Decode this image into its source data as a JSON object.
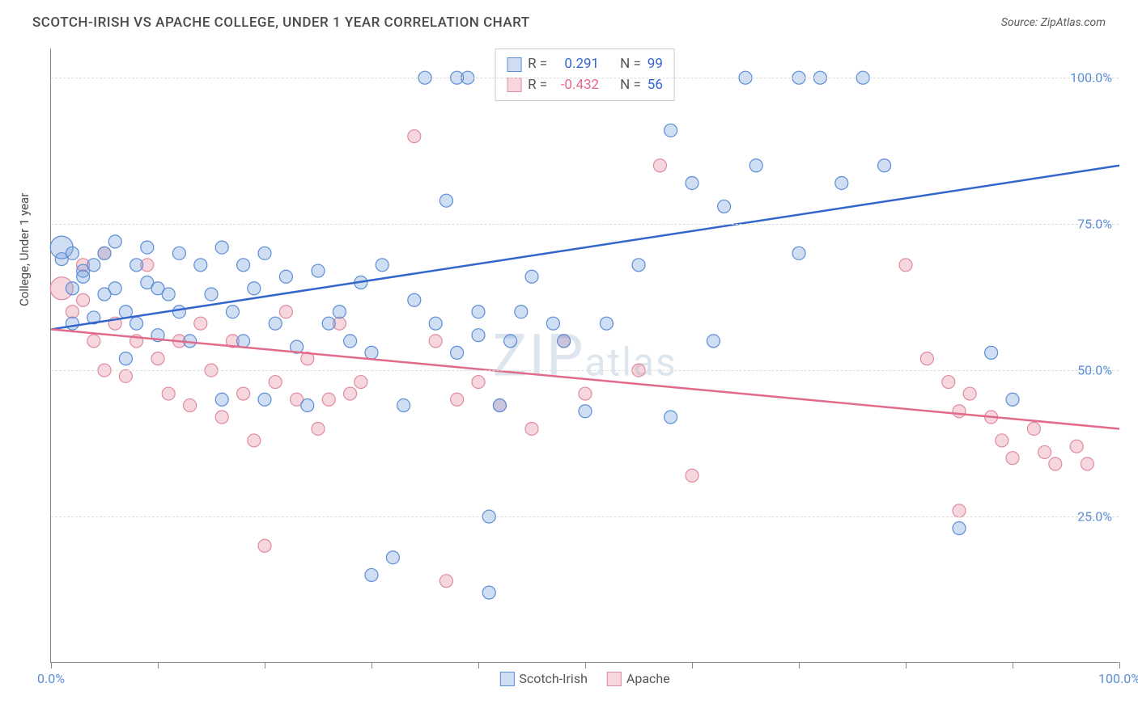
{
  "title": "SCOTCH-IRISH VS APACHE COLLEGE, UNDER 1 YEAR CORRELATION CHART",
  "source": "Source: ZipAtlas.com",
  "watermark": {
    "big": "ZIP",
    "small": "atlas"
  },
  "y_axis_label": "College, Under 1 year",
  "chart": {
    "type": "scatter",
    "xlim": [
      0,
      100
    ],
    "ylim": [
      0,
      105
    ],
    "x_ticks": [
      0,
      10,
      20,
      30,
      40,
      50,
      60,
      70,
      80,
      90,
      100
    ],
    "x_tick_labels": {
      "0": "0.0%",
      "100": "100.0%"
    },
    "y_ticks": [
      25,
      50,
      75,
      100
    ],
    "y_tick_labels": {
      "25": "25.0%",
      "50": "50.0%",
      "75": "75.0%",
      "100": "100.0%"
    },
    "grid_color": "#dddddd",
    "axis_color": "#888888",
    "background": "#ffffff"
  },
  "series": {
    "scotch_irish": {
      "label": "Scotch-Irish",
      "fill": "rgba(120,160,220,0.35)",
      "stroke": "#5b8dd6",
      "line_color": "#3366cc",
      "marker_r": 8,
      "R_label": "R =",
      "R_val": "0.291",
      "N_label": "N =",
      "N_val": "99",
      "trend": {
        "x1": 0,
        "y1": 57,
        "x2": 100,
        "y2": 85
      },
      "points": [
        [
          1,
          69
        ],
        [
          1,
          71,
          14
        ],
        [
          2,
          64
        ],
        [
          2,
          58
        ],
        [
          2,
          70
        ],
        [
          3,
          67
        ],
        [
          3,
          66
        ],
        [
          4,
          68
        ],
        [
          4,
          59
        ],
        [
          5,
          70
        ],
        [
          5,
          63
        ],
        [
          6,
          64
        ],
        [
          6,
          72
        ],
        [
          7,
          60
        ],
        [
          7,
          52
        ],
        [
          8,
          68
        ],
        [
          8,
          58
        ],
        [
          9,
          65
        ],
        [
          9,
          71
        ],
        [
          10,
          56
        ],
        [
          10,
          64
        ],
        [
          11,
          63
        ],
        [
          12,
          70
        ],
        [
          12,
          60
        ],
        [
          13,
          55
        ],
        [
          14,
          68
        ],
        [
          15,
          63
        ],
        [
          16,
          71
        ],
        [
          16,
          45
        ],
        [
          17,
          60
        ],
        [
          18,
          68
        ],
        [
          18,
          55
        ],
        [
          19,
          64
        ],
        [
          20,
          45
        ],
        [
          20,
          70
        ],
        [
          21,
          58
        ],
        [
          22,
          66
        ],
        [
          23,
          54
        ],
        [
          24,
          44
        ],
        [
          25,
          67
        ],
        [
          26,
          58
        ],
        [
          27,
          60
        ],
        [
          28,
          55
        ],
        [
          29,
          65
        ],
        [
          30,
          53
        ],
        [
          30,
          15
        ],
        [
          31,
          68
        ],
        [
          32,
          18
        ],
        [
          33,
          44
        ],
        [
          34,
          62
        ],
        [
          35,
          100
        ],
        [
          36,
          58
        ],
        [
          37,
          79
        ],
        [
          38,
          100
        ],
        [
          38,
          53
        ],
        [
          39,
          100
        ],
        [
          40,
          60
        ],
        [
          40,
          56
        ],
        [
          41,
          25
        ],
        [
          41,
          12
        ],
        [
          42,
          44
        ],
        [
          43,
          55
        ],
        [
          44,
          60
        ],
        [
          45,
          66
        ],
        [
          47,
          58
        ],
        [
          48,
          55
        ],
        [
          50,
          43
        ],
        [
          52,
          58
        ],
        [
          55,
          68
        ],
        [
          58,
          91
        ],
        [
          58,
          42
        ],
        [
          60,
          82
        ],
        [
          62,
          55
        ],
        [
          63,
          78
        ],
        [
          65,
          100
        ],
        [
          66,
          85
        ],
        [
          70,
          100
        ],
        [
          70,
          70
        ],
        [
          72,
          100
        ],
        [
          74,
          82
        ],
        [
          76,
          100
        ],
        [
          78,
          85
        ],
        [
          85,
          23
        ],
        [
          88,
          53
        ],
        [
          90,
          45
        ]
      ]
    },
    "apache": {
      "label": "Apache",
      "fill": "rgba(230,140,160,0.35)",
      "stroke": "#e08aa0",
      "line_color": "#e26a8a",
      "marker_r": 8,
      "R_label": "R =",
      "R_val": "-0.432",
      "N_label": "N =",
      "N_val": "56",
      "trend": {
        "x1": 0,
        "y1": 57,
        "x2": 100,
        "y2": 40
      },
      "points": [
        [
          1,
          64,
          14
        ],
        [
          2,
          60
        ],
        [
          3,
          62
        ],
        [
          3,
          68
        ],
        [
          4,
          55
        ],
        [
          5,
          70
        ],
        [
          5,
          50
        ],
        [
          6,
          58
        ],
        [
          7,
          49
        ],
        [
          8,
          55
        ],
        [
          9,
          68
        ],
        [
          10,
          52
        ],
        [
          11,
          46
        ],
        [
          12,
          55
        ],
        [
          13,
          44
        ],
        [
          14,
          58
        ],
        [
          15,
          50
        ],
        [
          16,
          42
        ],
        [
          17,
          55
        ],
        [
          18,
          46
        ],
        [
          19,
          38
        ],
        [
          20,
          20
        ],
        [
          21,
          48
        ],
        [
          22,
          60
        ],
        [
          23,
          45
        ],
        [
          24,
          52
        ],
        [
          25,
          40
        ],
        [
          26,
          45
        ],
        [
          27,
          58
        ],
        [
          28,
          46
        ],
        [
          29,
          48
        ],
        [
          34,
          90
        ],
        [
          36,
          55
        ],
        [
          37,
          14
        ],
        [
          38,
          45
        ],
        [
          40,
          48
        ],
        [
          42,
          44
        ],
        [
          45,
          40
        ],
        [
          48,
          55
        ],
        [
          50,
          46
        ],
        [
          55,
          50
        ],
        [
          57,
          85
        ],
        [
          60,
          32
        ],
        [
          80,
          68
        ],
        [
          82,
          52
        ],
        [
          84,
          48
        ],
        [
          85,
          43
        ],
        [
          86,
          46
        ],
        [
          88,
          42
        ],
        [
          89,
          38
        ],
        [
          90,
          35
        ],
        [
          92,
          40
        ],
        [
          93,
          36
        ],
        [
          94,
          34
        ],
        [
          96,
          37
        ],
        [
          97,
          34
        ],
        [
          85,
          26
        ]
      ]
    }
  }
}
